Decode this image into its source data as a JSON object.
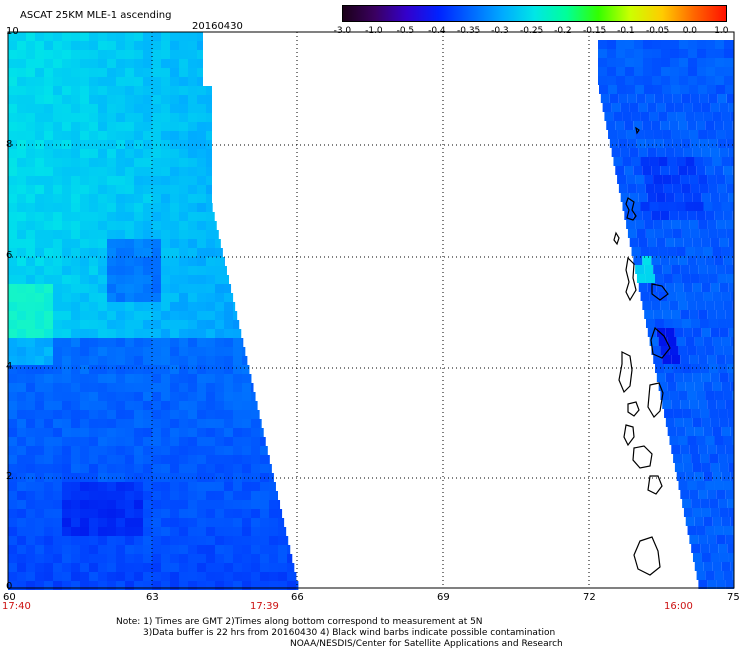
{
  "header": {
    "title": "ASCAT 25KM MLE-1 ascending",
    "date": "20160430"
  },
  "colorbar": {
    "labels": [
      "-3.0",
      "-1.0",
      "-0.5",
      "-0.4",
      "-0.35",
      "-0.3",
      "-0.25",
      "-0.2",
      "-0.15",
      "-0.1",
      "-0.05",
      "0.0",
      "1.0"
    ],
    "colors": [
      "#1a0018",
      "#3a0060",
      "#3300cc",
      "#0022ff",
      "#0066ff",
      "#00aaff",
      "#00e6e6",
      "#00ff99",
      "#33ff00",
      "#ccff00",
      "#ffcc00",
      "#ff6600",
      "#ff1100"
    ]
  },
  "axes": {
    "y_labels": [
      "10",
      "8",
      "6",
      "4",
      "2",
      "0"
    ],
    "x_labels": [
      "60",
      "63",
      "66",
      "69",
      "72",
      "75"
    ]
  },
  "pass_times": {
    "left_start": "17:40",
    "left_end": "17:39",
    "right": "16:00"
  },
  "notes": {
    "line1": "Note: 1) Times are GMT 2)Times along bottom correspond to measurement at 5N",
    "line2": "3)Data buffer is 22 hrs from 20160430 4) Black wind barbs indicate possible contamination",
    "line3": "NOAA/NESDIS/Center for Satellite Applications and Research"
  }
}
